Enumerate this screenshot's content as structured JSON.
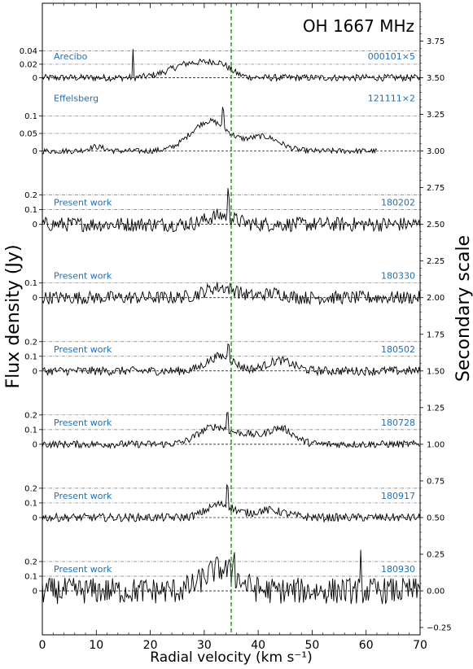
{
  "chart_data": {
    "type": "line",
    "title": "OH 1667 MHz",
    "xlabel": "Radial velocity (km s⁻¹)",
    "ylabel": "Flux density (Jy)",
    "y2label": "Secondary scale",
    "xlim": [
      0,
      70
    ],
    "x_ticks": [
      "0",
      "10",
      "20",
      "30",
      "40",
      "50",
      "60",
      "70"
    ],
    "y2lim": [
      -0.3,
      4.0
    ],
    "y2_ticks": [
      "−0.25",
      "0.00",
      "0.25",
      "0.50",
      "0.75",
      "1.00",
      "1.25",
      "1.50",
      "1.75",
      "2.00",
      "2.25",
      "2.50",
      "2.75",
      "3.00",
      "3.25",
      "3.50",
      "3.75"
    ],
    "reference_line_velocity": 35,
    "grid": false,
    "series": [
      {
        "label": "Arecibo",
        "date": "000101×5",
        "offset": 3.5,
        "scale": 4.6,
        "ticks": [
          {
            "v": 0,
            "t": "0"
          },
          {
            "v": 0.02,
            "t": "0.02"
          },
          {
            "v": 0.04,
            "t": "0.04"
          }
        ],
        "guides": [
          0.02,
          0.04
        ],
        "xmax": 70,
        "peaks": [
          {
            "v": 28,
            "w": 4,
            "a": 0.022
          },
          {
            "v": 33,
            "w": 2,
            "a": 0.012
          }
        ],
        "spikes": [
          {
            "v": 16.8,
            "a": 0.038
          }
        ],
        "noise": 0.005
      },
      {
        "label": "Effelsberg",
        "date": "121111×2",
        "offset": 3.0,
        "scale": 2.4,
        "ticks": [
          {
            "v": 0,
            "t": "0"
          },
          {
            "v": 0.05,
            "t": "0.05"
          },
          {
            "v": 0.1,
            "t": "0.1"
          }
        ],
        "guides": [
          0.05,
          0.1
        ],
        "xmax": 62,
        "peaks": [
          {
            "v": 31,
            "w": 3.5,
            "a": 0.085
          },
          {
            "v": 41,
            "w": 3,
            "a": 0.04
          },
          {
            "v": 10,
            "w": 1.5,
            "a": 0.012
          }
        ],
        "spikes": [
          {
            "v": 33.5,
            "a": 0.05
          }
        ],
        "noise": 0.008
      },
      {
        "label": "Present work",
        "date": "180202",
        "offset": 2.5,
        "scale": 1.0,
        "ticks": [
          {
            "v": 0,
            "t": "0"
          },
          {
            "v": 0.1,
            "t": "0.1"
          },
          {
            "v": 0.2,
            "t": "0.2"
          }
        ],
        "guides": [
          0.1,
          0.2
        ],
        "xmax": 70,
        "peaks": [
          {
            "v": 33,
            "w": 2.5,
            "a": 0.06
          }
        ],
        "spikes": [
          {
            "v": 34.5,
            "a": 0.16
          }
        ],
        "noise": 0.05
      },
      {
        "label": "Present work",
        "date": "180330",
        "offset": 2.0,
        "scale": 1.0,
        "ticks": [
          {
            "v": 0,
            "t": "0"
          },
          {
            "v": 0.1,
            "t": "0.1"
          }
        ],
        "guides": [
          0.1
        ],
        "xmax": 70,
        "peaks": [
          {
            "v": 33,
            "w": 3,
            "a": 0.07
          },
          {
            "v": 43,
            "w": 2,
            "a": 0.03
          }
        ],
        "spikes": [
          {
            "v": 36,
            "a": 0.06
          }
        ],
        "noise": 0.045
      },
      {
        "label": "Present work",
        "date": "180502",
        "offset": 1.5,
        "scale": 1.0,
        "ticks": [
          {
            "v": 0,
            "t": "0"
          },
          {
            "v": 0.1,
            "t": "0.1"
          },
          {
            "v": 0.2,
            "t": "0.2"
          }
        ],
        "guides": [
          0.1,
          0.2
        ],
        "xmax": 70,
        "peaks": [
          {
            "v": 33,
            "w": 2.5,
            "a": 0.1
          },
          {
            "v": 44,
            "w": 2.5,
            "a": 0.07
          }
        ],
        "spikes": [
          {
            "v": 34.5,
            "a": 0.12
          }
        ],
        "noise": 0.03
      },
      {
        "label": "Present work",
        "date": "180728",
        "offset": 1.0,
        "scale": 1.0,
        "ticks": [
          {
            "v": 0,
            "t": "0"
          },
          {
            "v": 0.1,
            "t": "0.1"
          },
          {
            "v": 0.2,
            "t": "0.2"
          }
        ],
        "guides": [
          0.1,
          0.2
        ],
        "xmax": 70,
        "peaks": [
          {
            "v": 32,
            "w": 3,
            "a": 0.12
          },
          {
            "v": 44,
            "w": 2.5,
            "a": 0.11
          },
          {
            "v": 38,
            "w": 2,
            "a": 0.05
          }
        ],
        "spikes": [
          {
            "v": 34.3,
            "a": 0.12
          }
        ],
        "noise": 0.025
      },
      {
        "label": "Present work",
        "date": "180917",
        "offset": 0.5,
        "scale": 1.0,
        "ticks": [
          {
            "v": 0,
            "t": "0"
          },
          {
            "v": 0.1,
            "t": "0.1"
          },
          {
            "v": 0.2,
            "t": "0.2"
          }
        ],
        "guides": [
          0.1,
          0.2
        ],
        "xmax": 70,
        "peaks": [
          {
            "v": 33,
            "w": 2.5,
            "a": 0.09
          },
          {
            "v": 42,
            "w": 3,
            "a": 0.05
          }
        ],
        "spikes": [
          {
            "v": 34.3,
            "a": 0.14
          }
        ],
        "noise": 0.028
      },
      {
        "label": "Present work",
        "date": "180930",
        "offset": 0.0,
        "scale": 1.0,
        "ticks": [
          {
            "v": 0,
            "t": "0"
          },
          {
            "v": 0.1,
            "t": "0.1"
          },
          {
            "v": 0.2,
            "t": "0.2"
          }
        ],
        "guides": [
          0.1,
          0.2
        ],
        "xmax": 70,
        "peaks": [
          {
            "v": 33,
            "w": 3,
            "a": 0.15
          }
        ],
        "spikes": [
          {
            "v": 35.5,
            "a": 0.15
          },
          {
            "v": 59,
            "a": 0.2
          }
        ],
        "noise": 0.09
      }
    ]
  }
}
